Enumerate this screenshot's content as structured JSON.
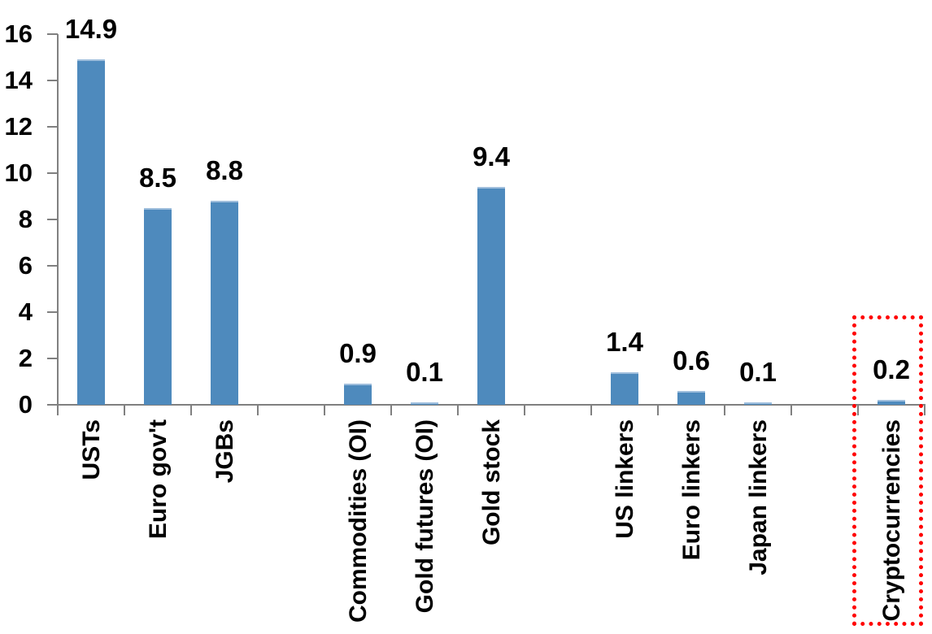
{
  "chart_data": {
    "type": "bar",
    "title": "",
    "xlabel": "",
    "ylabel": "",
    "categories": [
      "USTs",
      "Euro gov't",
      "JGBs",
      "Commodities (OI)",
      "Gold futures (OI)",
      "Gold stock",
      "US linkers",
      "Euro linkers",
      "Japan linkers",
      "Cryptocurrencies"
    ],
    "values": [
      14.9,
      8.5,
      8.8,
      0.9,
      0.1,
      9.4,
      1.4,
      0.6,
      0.1,
      0.2
    ],
    "slots": [
      {
        "label": "USTs",
        "value": 14.9,
        "value_label": "14.9"
      },
      {
        "label": "Euro gov't",
        "value": 8.5,
        "value_label": "8.5"
      },
      {
        "label": "JGBs",
        "value": 8.8,
        "value_label": "8.8"
      },
      {
        "label": "",
        "value": null,
        "value_label": ""
      },
      {
        "label": "Commodities (OI)",
        "value": 0.9,
        "value_label": "0.9"
      },
      {
        "label": "Gold futures (OI)",
        "value": 0.1,
        "value_label": "0.1"
      },
      {
        "label": "Gold stock",
        "value": 9.4,
        "value_label": "9.4"
      },
      {
        "label": "",
        "value": null,
        "value_label": ""
      },
      {
        "label": "US linkers",
        "value": 1.4,
        "value_label": "1.4"
      },
      {
        "label": "Euro linkers",
        "value": 0.6,
        "value_label": "0.6"
      },
      {
        "label": "Japan linkers",
        "value": 0.1,
        "value_label": "0.1"
      },
      {
        "label": "",
        "value": null,
        "value_label": ""
      },
      {
        "label": "Cryptocurrencies",
        "value": 0.2,
        "value_label": "0.2"
      }
    ],
    "ylim": [
      0,
      16
    ],
    "yticks": [
      0,
      2,
      4,
      6,
      8,
      10,
      12,
      14,
      16
    ],
    "grid": "off",
    "legend": "none",
    "x_label_rotation": 90,
    "bar_color": "#4E8ABD",
    "axis_color": "#808080",
    "data_label_color": "#000000",
    "highlight": {
      "category": "Cryptocurrencies",
      "slot_index": 12,
      "style": "dotted-box",
      "color": "#FF0000"
    }
  }
}
